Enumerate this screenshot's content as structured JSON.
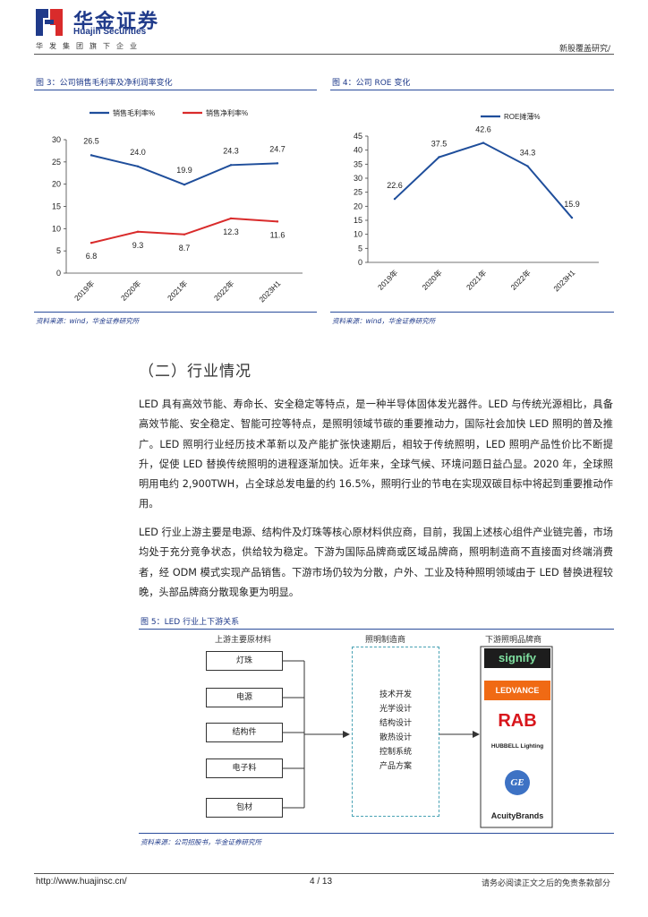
{
  "header": {
    "brand_cn": "华金证券",
    "brand_en": "Huajin Securities",
    "slogan": "华发集团旗下企业",
    "right_text": "新股覆盖研究/"
  },
  "figures": {
    "fig3": {
      "title": "图 3：公司销售毛利率及净利润率变化",
      "source": "资料来源：wind，华金证券研究所"
    },
    "fig4": {
      "title": "图 4：公司 ROE 变化",
      "source": "资料来源：wind，华金证券研究所"
    },
    "fig5": {
      "title": "图 5：LED 行业上下游关系",
      "source": "资料来源：公司招股书，华金证券研究所",
      "upstream_label": "上游主要原材料",
      "upstream_items": [
        "灯珠",
        "电源",
        "结构件",
        "电子料",
        "包材"
      ],
      "manufacturer_label": "照明制造商",
      "manufacturer_items": [
        "技术开发",
        "光学设计",
        "结构设计",
        "散热设计",
        "控制系统",
        "产品方案"
      ],
      "downstream_label": "下游照明品牌商",
      "brands": [
        "signify",
        "LEDVANCE",
        "RAB",
        "HUBBELL Lighting",
        "GE",
        "AcuityBrands"
      ]
    }
  },
  "chart_data": [
    {
      "type": "line",
      "categories": [
        "2019年",
        "2020年",
        "2021年",
        "2022年",
        "2023H1"
      ],
      "series": [
        {
          "name": "销售毛利率%",
          "values": [
            26.5,
            24.0,
            19.9,
            24.3,
            24.7
          ],
          "color": "#1f4e9b"
        },
        {
          "name": "销售净利率%",
          "values": [
            6.8,
            9.3,
            8.7,
            12.3,
            11.6
          ],
          "color": "#d92b2b"
        }
      ],
      "ylim": [
        0,
        30
      ],
      "yticks": [
        0,
        5,
        10,
        15,
        20,
        25,
        30
      ],
      "data_labels": [
        "26.5",
        "24.0",
        "19.9",
        "24.3",
        "24.7",
        "6.8",
        "9.3",
        "8.7",
        "12.3",
        "11.6"
      ],
      "legend": "top",
      "grid": false
    },
    {
      "type": "line",
      "categories": [
        "2019年",
        "2020年",
        "2021年",
        "2022年",
        "2023H1"
      ],
      "series": [
        {
          "name": "ROE摊薄%",
          "values": [
            22.6,
            37.5,
            42.6,
            34.3,
            15.9
          ],
          "color": "#1f4e9b"
        }
      ],
      "ylim": [
        0,
        45
      ],
      "yticks": [
        0,
        5,
        10,
        15,
        20,
        25,
        30,
        35,
        40,
        45
      ],
      "data_labels": [
        "22.6",
        "37.5",
        "42.6",
        "34.3",
        "15.9"
      ],
      "legend": "top",
      "grid": false
    }
  ],
  "section": {
    "heading": "（二）行业情况",
    "para1": "LED 具有高效节能、寿命长、安全稳定等特点，是一种半导体固体发光器件。LED 与传统光源相比，具备高效节能、安全稳定、智能可控等特点，是照明领域节碳的重要推动力，国际社会加快 LED 照明的普及推广。LED 照明行业经历技术革新以及产能扩张快速期后，相较于传统照明，LED 照明产品性价比不断提升，促使 LED 替换传统照明的进程逐渐加快。近年来，全球气候、环境问题日益凸显。2020 年，全球照明用电约 2,900TWH，占全球总发电量的约 16.5%，照明行业的节电在实现双碳目标中将起到重要推动作用。",
    "para2": "LED 行业上游主要是电源、结构件及灯珠等核心原材料供应商，目前，我国上述核心组件产业链完善，市场均处于充分竞争状态，供给较为稳定。下游为国际品牌商或区域品牌商，照明制造商不直接面对终端消费者，经 ODM 模式实现产品销售。下游市场仍较为分散，户外、工业及特种照明领域由于 LED 替换进程较晚，头部品牌商分散现象更为明显。"
  },
  "footer": {
    "url": "http://www.huajinsc.cn/",
    "page": "4 / 13",
    "disclaimer": "请务必阅读正文之后的免责条款部分"
  },
  "colors": {
    "brand_blue": "#1f3a8a",
    "series_blue": "#1f4e9b",
    "series_red": "#d92b2b",
    "accent_teal": "#4aa3b5"
  }
}
